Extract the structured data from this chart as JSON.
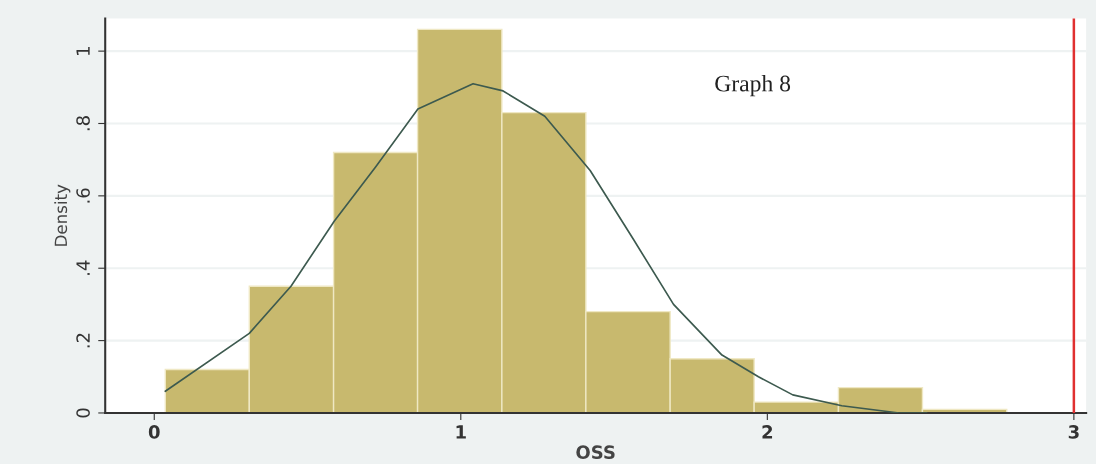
{
  "chart_data": {
    "type": "histogram",
    "xlabel": "OSS",
    "ylabel": "Density",
    "bins": [
      0.036,
      0.31,
      0.585,
      0.859,
      1.134,
      1.408,
      1.683,
      1.957,
      2.232,
      2.506,
      2.781
    ],
    "values": [
      0.12,
      0.35,
      0.72,
      1.06,
      0.83,
      0.28,
      0.15,
      0.03,
      0.07,
      0.01
    ],
    "color": "#c8b96e",
    "series": [
      {
        "type": "line",
        "color": "#3d5a4f",
        "x": [
          0.036,
          0.31,
          0.446,
          0.587,
          0.722,
          0.86,
          1.04,
          1.138,
          1.274,
          1.422,
          1.563,
          1.694,
          1.852,
          1.971,
          2.083,
          2.243,
          2.43,
          2.52
        ],
        "values": [
          0.06,
          0.22,
          0.35,
          0.53,
          0.68,
          0.84,
          0.91,
          0.89,
          0.82,
          0.67,
          0.48,
          0.3,
          0.16,
          0.1,
          0.05,
          0.02,
          0.0,
          0.0
        ]
      }
    ],
    "ref_lines": [
      {
        "axis": "x",
        "value": 3,
        "color": "#e03030"
      }
    ],
    "annotations": [
      "Graph 8"
    ],
    "xlim": [
      -0.16,
      3.04
    ],
    "xticks": [
      0,
      1,
      2,
      3
    ],
    "ylim": [
      0,
      1.09
    ],
    "yticks": [
      0,
      {
        "value": 0.2,
        "label": ".2"
      },
      {
        "value": 0.4,
        "label": ".4"
      },
      {
        "value": 0.6,
        "label": ".6"
      },
      {
        "value": 0.8,
        "label": ".8"
      },
      1
    ],
    "grid": "y"
  }
}
